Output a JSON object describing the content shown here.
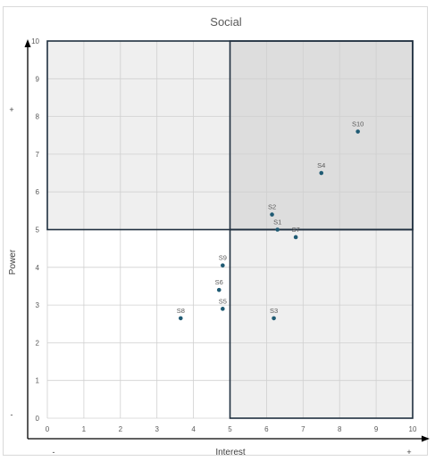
{
  "chart_data": {
    "type": "scatter",
    "title": "Social",
    "xlabel": "Interest",
    "ylabel": "Power",
    "xlim": [
      0,
      10
    ],
    "ylim": [
      0,
      10
    ],
    "x_ticks": [
      0,
      1,
      2,
      3,
      4,
      5,
      6,
      7,
      8,
      9,
      10
    ],
    "y_ticks": [
      0,
      1,
      2,
      3,
      4,
      5,
      6,
      7,
      8,
      9,
      10
    ],
    "grid": true,
    "x_axis_signs": {
      "low": "-",
      "high": "+"
    },
    "y_axis_signs": {
      "low": "-",
      "high": "+"
    },
    "quadrant_split": {
      "x": 5,
      "y": 5
    },
    "quadrant_colors": {
      "top_left": "#efefef",
      "top_right": "#dddddd",
      "bottom_left": "#ffffff",
      "bottom_right": "#efefef"
    },
    "point_color": "#1f5a73",
    "frame_color": "#1f2f3f",
    "points": [
      {
        "label": "S10",
        "x": 8.5,
        "y": 7.6
      },
      {
        "label": "S4",
        "x": 7.5,
        "y": 6.5
      },
      {
        "label": "S2",
        "x": 6.15,
        "y": 5.4
      },
      {
        "label": "S1",
        "x": 6.3,
        "y": 5.0
      },
      {
        "label": "S7",
        "x": 6.8,
        "y": 4.8
      },
      {
        "label": "S9",
        "x": 4.8,
        "y": 4.05
      },
      {
        "label": "S6",
        "x": 4.7,
        "y": 3.4
      },
      {
        "label": "S5",
        "x": 4.8,
        "y": 2.9
      },
      {
        "label": "S8",
        "x": 3.65,
        "y": 2.65
      },
      {
        "label": "S3",
        "x": 6.2,
        "y": 2.65
      }
    ]
  }
}
